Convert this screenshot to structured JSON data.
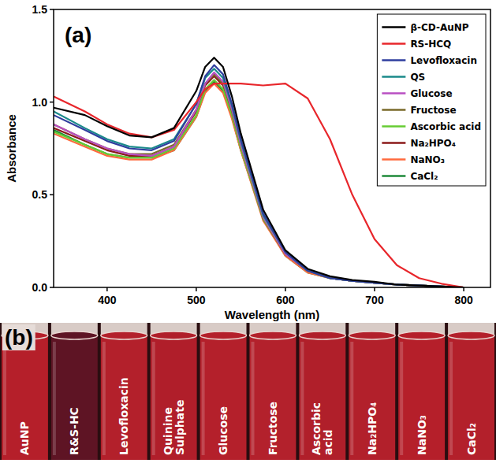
{
  "chart_data": {
    "type": "line",
    "panel_label": "(a)",
    "x_label": "Wavelength (nm)",
    "y_label": "Absorbance",
    "x": [
      340,
      375,
      400,
      425,
      450,
      475,
      500,
      510,
      520,
      530,
      540,
      550,
      575,
      600,
      625,
      650,
      675,
      700,
      725,
      750,
      775,
      800
    ],
    "xlim": [
      340,
      830
    ],
    "xticks": [
      400,
      500,
      600,
      700,
      800
    ],
    "ylim": [
      0,
      1.5
    ],
    "yticks": [
      {
        "value": 0,
        "label": "0.0"
      },
      0.5,
      {
        "value": 1,
        "label": "1.0"
      },
      1.5
    ],
    "grid": false,
    "legend": "upper right",
    "series": [
      {
        "name": "β-CD-AuNP",
        "color": "#000000",
        "values": [
          0.97,
          0.93,
          0.87,
          0.82,
          0.81,
          0.86,
          1.06,
          1.19,
          1.24,
          1.19,
          1.03,
          0.83,
          0.42,
          0.2,
          0.1,
          0.06,
          0.04,
          0.03,
          0.015,
          0.01,
          0.005,
          0
        ]
      },
      {
        "name": "RS-HCQ",
        "color": "#e8262b",
        "values": [
          1.03,
          0.95,
          0.88,
          0.83,
          0.81,
          0.85,
          1.0,
          1.07,
          1.1,
          1.1,
          1.1,
          1.1,
          1.09,
          1.1,
          1.02,
          0.8,
          0.5,
          0.26,
          0.12,
          0.05,
          0.02,
          0
        ]
      },
      {
        "name": "Levofloxacin",
        "color": "#2e3e9e",
        "values": [
          0.93,
          0.85,
          0.79,
          0.75,
          0.74,
          0.79,
          0.99,
          1.14,
          1.2,
          1.15,
          0.99,
          0.8,
          0.4,
          0.19,
          0.09,
          0.05,
          0.035,
          0.025,
          0.015,
          0.01,
          0.005,
          0
        ]
      },
      {
        "name": "QS",
        "color": "#1a8a8a",
        "values": [
          0.95,
          0.86,
          0.8,
          0.76,
          0.75,
          0.8,
          0.99,
          1.13,
          1.18,
          1.13,
          0.98,
          0.79,
          0.39,
          0.19,
          0.09,
          0.05,
          0.035,
          0.025,
          0.015,
          0.01,
          0.005,
          0
        ]
      },
      {
        "name": "Glucose",
        "color": "#b94fc2",
        "values": [
          0.88,
          0.8,
          0.75,
          0.72,
          0.71,
          0.76,
          0.96,
          1.1,
          1.16,
          1.11,
          0.96,
          0.77,
          0.38,
          0.18,
          0.09,
          0.05,
          0.035,
          0.025,
          0.015,
          0.01,
          0.005,
          0
        ]
      },
      {
        "name": "Fructose",
        "color": "#7a6a2a",
        "values": [
          0.88,
          0.8,
          0.75,
          0.72,
          0.72,
          0.77,
          0.96,
          1.1,
          1.15,
          1.1,
          0.95,
          0.77,
          0.38,
          0.18,
          0.09,
          0.05,
          0.035,
          0.025,
          0.015,
          0.01,
          0.005,
          0
        ]
      },
      {
        "name": "Ascorbic acid",
        "color": "#66cc33",
        "values": [
          0.84,
          0.77,
          0.72,
          0.7,
          0.7,
          0.75,
          0.93,
          1.07,
          1.12,
          1.07,
          0.93,
          0.75,
          0.37,
          0.18,
          0.09,
          0.05,
          0.035,
          0.025,
          0.015,
          0.01,
          0.005,
          0
        ]
      },
      {
        "name": "Na₂HPO₄",
        "color": "#8b1a1a",
        "values": [
          0.86,
          0.79,
          0.74,
          0.71,
          0.71,
          0.76,
          0.95,
          1.09,
          1.14,
          1.09,
          0.94,
          0.76,
          0.37,
          0.18,
          0.09,
          0.05,
          0.035,
          0.025,
          0.015,
          0.01,
          0.005,
          0
        ]
      },
      {
        "name": "NaNO₃",
        "color": "#ff6a3d",
        "values": [
          0.83,
          0.76,
          0.71,
          0.69,
          0.69,
          0.74,
          0.92,
          1.05,
          1.1,
          1.05,
          0.91,
          0.74,
          0.36,
          0.17,
          0.08,
          0.05,
          0.035,
          0.025,
          0.015,
          0.01,
          0.005,
          0
        ]
      },
      {
        "name": "CaCl₂",
        "color": "#1f8a3a",
        "values": [
          0.85,
          0.77,
          0.72,
          0.7,
          0.7,
          0.74,
          0.92,
          1.06,
          1.11,
          1.06,
          0.92,
          0.74,
          0.37,
          0.17,
          0.08,
          0.05,
          0.035,
          0.025,
          0.015,
          0.01,
          0.005,
          0
        ]
      }
    ]
  },
  "photo": {
    "panel_label": "(b)",
    "vials": [
      {
        "label": "AuNP",
        "color": "#b51f2a"
      },
      {
        "label": "R&S-HC",
        "color": "#5e1424"
      },
      {
        "label": "Levofloxacin",
        "color": "#b3202b"
      },
      {
        "label": "Quinine Sulphate",
        "color": "#b01e2a"
      },
      {
        "label": "Glucose",
        "color": "#b4202b"
      },
      {
        "label": "Fructose",
        "color": "#b3212c"
      },
      {
        "label": "Ascorbic acid",
        "color": "#b01f2a"
      },
      {
        "label": "Na₂HPO₄",
        "color": "#b2202b"
      },
      {
        "label": "NaNO₃",
        "color": "#b51f2a"
      },
      {
        "label": "CaCl₂",
        "color": "#b3202b"
      }
    ]
  }
}
